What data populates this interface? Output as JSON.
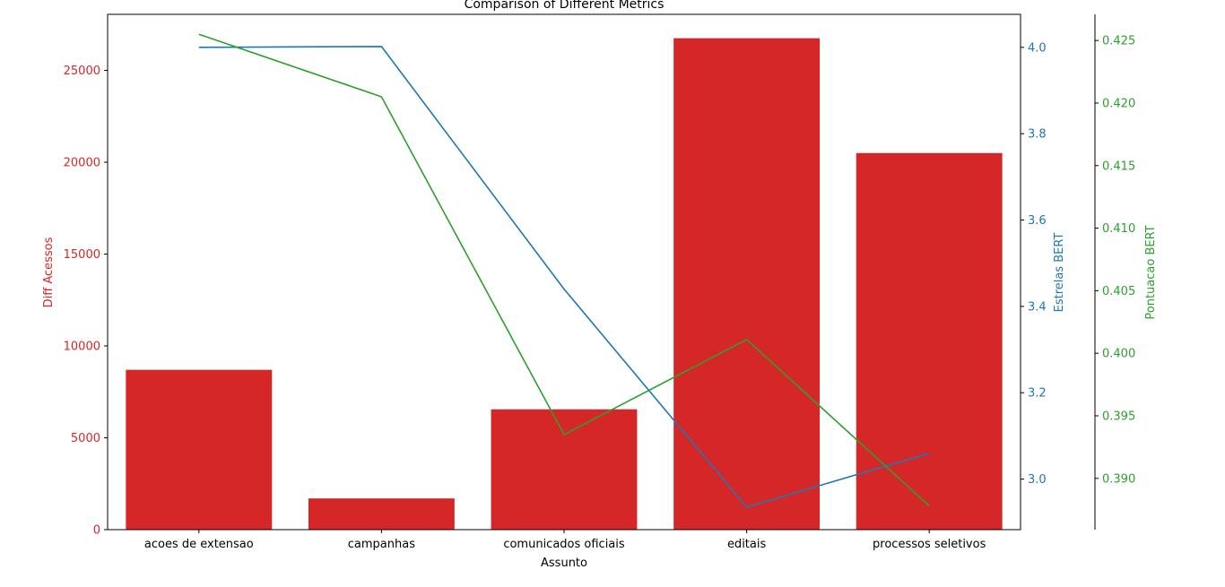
{
  "chart_data": {
    "type": "bar",
    "title": "Comparison of Different Metrics",
    "xlabel": "Assunto",
    "categories": [
      "acoes de extensao",
      "campanhas",
      "comunicados oficiais",
      "editais",
      "processos seletivos"
    ],
    "series": [
      {
        "name": "Diff Acessos",
        "type": "bar",
        "axis": "left",
        "color": "#d62728",
        "values": [
          8700,
          1700,
          6550,
          26750,
          20500
        ]
      },
      {
        "name": "Estrelas BERT",
        "type": "line",
        "axis": "right",
        "color": "#1f77b4",
        "values": [
          4.0,
          4.002,
          3.44,
          2.935,
          3.06
        ]
      },
      {
        "name": "Pontuacao BERT",
        "type": "line",
        "axis": "right2",
        "color": "#2ca02c",
        "values": [
          0.4255,
          0.4205,
          0.3935,
          0.4011,
          0.3878
        ]
      }
    ],
    "axes": {
      "left": {
        "label": "Diff Acessos",
        "color": "#d62728",
        "ylim": [
          0,
          28050
        ],
        "ticks": [
          0,
          5000,
          10000,
          15000,
          20000,
          25000
        ],
        "tick_labels": [
          "0",
          "5000",
          "10000",
          "15000",
          "20000",
          "25000"
        ]
      },
      "right": {
        "label": "Estrelas BERT",
        "color": "#1f77b4",
        "ylim": [
          2.8829,
          4.0765
        ],
        "ticks": [
          3.0,
          3.2,
          3.4,
          3.6,
          3.8,
          4.0
        ],
        "tick_labels": [
          "3.0",
          "3.2",
          "3.4",
          "3.6",
          "3.8",
          "4.0"
        ]
      },
      "right2": {
        "label": "Pontuacao BERT",
        "color": "#2ca02c",
        "ylim": [
          0.3859,
          0.42709
        ],
        "ticks": [
          0.39,
          0.395,
          0.4,
          0.405,
          0.41,
          0.415,
          0.42,
          0.425
        ],
        "tick_labels": [
          "0.390",
          "0.395",
          "0.400",
          "0.405",
          "0.410",
          "0.415",
          "0.420",
          "0.425"
        ]
      }
    },
    "grid": false
  }
}
